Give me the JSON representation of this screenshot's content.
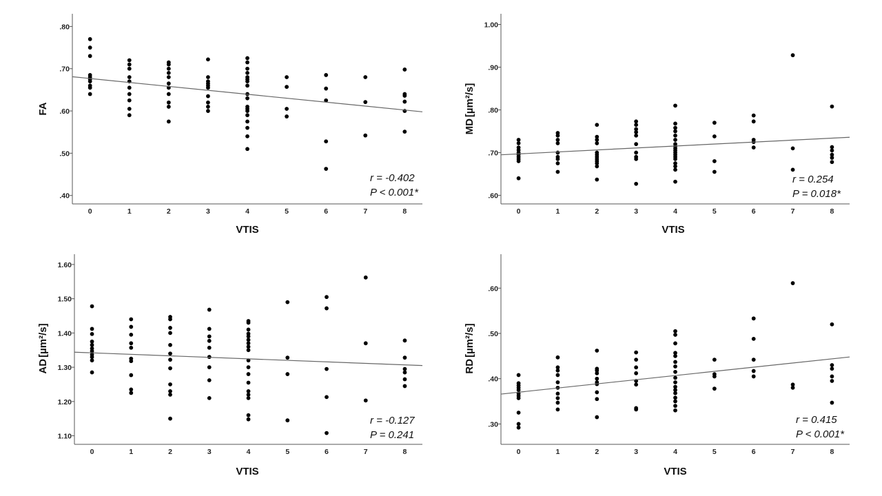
{
  "chart_data": [
    {
      "id": "fa",
      "type": "scatter",
      "xlabel": "VTIS",
      "ylabel": "FA",
      "ylabel_unit": "",
      "xticks": [
        0,
        1,
        2,
        3,
        4,
        5,
        6,
        7,
        8
      ],
      "xtick_labels": [
        "0",
        "1",
        "2",
        "3",
        "4",
        "5",
        "6",
        "7",
        "8"
      ],
      "xlim": [
        -0.45,
        8.45
      ],
      "yticks": [
        0.4,
        0.5,
        0.6,
        0.7,
        0.8
      ],
      "ytick_labels": [
        ".40",
        ".50",
        ".60",
        ".70",
        ".80"
      ],
      "ylim": [
        0.38,
        0.83
      ],
      "points": {
        "0": [
          0.77,
          0.75,
          0.73,
          0.685,
          0.68,
          0.675,
          0.67,
          0.66,
          0.655,
          0.64
        ],
        "1": [
          0.72,
          0.71,
          0.7,
          0.68,
          0.67,
          0.655,
          0.64,
          0.625,
          0.605,
          0.59
        ],
        "2": [
          0.715,
          0.71,
          0.7,
          0.69,
          0.68,
          0.665,
          0.655,
          0.64,
          0.62,
          0.61,
          0.575
        ],
        "3": [
          0.722,
          0.68,
          0.67,
          0.665,
          0.66,
          0.655,
          0.635,
          0.62,
          0.61,
          0.6
        ],
        "4": [
          0.725,
          0.715,
          0.7,
          0.69,
          0.68,
          0.675,
          0.67,
          0.66,
          0.64,
          0.63,
          0.61,
          0.605,
          0.6,
          0.59,
          0.575,
          0.56,
          0.54,
          0.51
        ],
        "5": [
          0.68,
          0.657,
          0.605,
          0.587
        ],
        "6": [
          0.685,
          0.653,
          0.625,
          0.528,
          0.463
        ],
        "7": [
          0.68,
          0.621,
          0.542
        ],
        "8": [
          0.698,
          0.64,
          0.636,
          0.622,
          0.6,
          0.551
        ]
      },
      "fit": {
        "x": [
          -0.45,
          8.45
        ],
        "y": [
          0.681,
          0.598
        ]
      },
      "stats": {
        "r": "r = -0.402",
        "p": "P < 0.001*"
      }
    },
    {
      "id": "md",
      "type": "scatter",
      "xlabel": "VTIS",
      "ylabel": "MD",
      "ylabel_unit": "[µm²/s]",
      "xticks": [
        0,
        1,
        2,
        3,
        4,
        5,
        6,
        7,
        8
      ],
      "xtick_labels": [
        "0",
        "1",
        "2",
        "3",
        "4",
        "5",
        "6",
        "7",
        "8"
      ],
      "xlim": [
        -0.45,
        8.45
      ],
      "yticks": [
        0.6,
        0.7,
        0.8,
        0.9,
        1.0
      ],
      "ytick_labels": [
        ".60",
        ".70",
        ".80",
        ".90",
        "1.00"
      ],
      "ylim": [
        0.58,
        1.025
      ],
      "points": {
        "0": [
          0.73,
          0.722,
          0.712,
          0.706,
          0.7,
          0.695,
          0.69,
          0.685,
          0.68,
          0.64
        ],
        "1": [
          0.746,
          0.74,
          0.73,
          0.722,
          0.7,
          0.69,
          0.685,
          0.675,
          0.655
        ],
        "2": [
          0.765,
          0.737,
          0.73,
          0.722,
          0.7,
          0.695,
          0.69,
          0.685,
          0.68,
          0.675,
          0.668,
          0.637
        ],
        "3": [
          0.773,
          0.765,
          0.755,
          0.748,
          0.74,
          0.72,
          0.7,
          0.69,
          0.685,
          0.627
        ],
        "4": [
          0.81,
          0.768,
          0.758,
          0.75,
          0.74,
          0.73,
          0.72,
          0.715,
          0.71,
          0.705,
          0.7,
          0.695,
          0.69,
          0.685,
          0.675,
          0.668,
          0.66,
          0.632
        ],
        "5": [
          0.77,
          0.738,
          0.68,
          0.655
        ],
        "6": [
          0.787,
          0.773,
          0.73,
          0.725,
          0.712
        ],
        "7": [
          0.928,
          0.71,
          0.66
        ],
        "8": [
          0.808,
          0.713,
          0.705,
          0.695,
          0.688,
          0.678
        ]
      },
      "fit": {
        "x": [
          -0.45,
          8.45
        ],
        "y": [
          0.695,
          0.736
        ]
      },
      "stats": {
        "r": "r = 0.254",
        "p": "P = 0.018*"
      }
    },
    {
      "id": "ad",
      "type": "scatter",
      "xlabel": "VTIS",
      "ylabel": "AD",
      "ylabel_unit": "[µm²/s]",
      "xticks": [
        0,
        1,
        2,
        3,
        4,
        5,
        6,
        7,
        8
      ],
      "xtick_labels": [
        "0",
        "1",
        "2",
        "3",
        "4",
        "5",
        "6",
        "7",
        "8"
      ],
      "xlim": [
        -0.45,
        8.45
      ],
      "yticks": [
        1.1,
        1.2,
        1.3,
        1.4,
        1.5,
        1.6
      ],
      "ytick_labels": [
        "1.10",
        "1.20",
        "1.30",
        "1.40",
        "1.50",
        "1.60"
      ],
      "ylim": [
        1.075,
        1.63
      ],
      "points": {
        "0": [
          1.478,
          1.412,
          1.397,
          1.375,
          1.365,
          1.355,
          1.347,
          1.337,
          1.33,
          1.32,
          1.285
        ],
        "1": [
          1.44,
          1.418,
          1.395,
          1.37,
          1.357,
          1.325,
          1.318,
          1.277,
          1.235,
          1.225
        ],
        "2": [
          1.447,
          1.44,
          1.415,
          1.4,
          1.365,
          1.34,
          1.322,
          1.297,
          1.25,
          1.23,
          1.22,
          1.15
        ],
        "3": [
          1.468,
          1.412,
          1.39,
          1.377,
          1.357,
          1.33,
          1.3,
          1.262,
          1.21
        ],
        "4": [
          1.435,
          1.43,
          1.41,
          1.398,
          1.39,
          1.38,
          1.37,
          1.36,
          1.35,
          1.32,
          1.3,
          1.28,
          1.255,
          1.23,
          1.22,
          1.21,
          1.16,
          1.148
        ],
        "5": [
          1.49,
          1.328,
          1.28,
          1.145
        ],
        "6": [
          1.505,
          1.472,
          1.295,
          1.213,
          1.108
        ],
        "7": [
          1.562,
          1.37,
          1.203
        ],
        "8": [
          1.378,
          1.328,
          1.295,
          1.285,
          1.265,
          1.245
        ]
      },
      "fit": {
        "x": [
          -0.45,
          8.45
        ],
        "y": [
          1.344,
          1.305
        ]
      },
      "stats": {
        "r": "r = -0.127",
        "p": "P = 0.241"
      }
    },
    {
      "id": "rd",
      "type": "scatter",
      "xlabel": "VTIS",
      "ylabel": "RD",
      "ylabel_unit": "[µm²/s]",
      "xticks": [
        0,
        1,
        2,
        3,
        4,
        5,
        6,
        7,
        8
      ],
      "xtick_labels": [
        "0",
        "1",
        "2",
        "3",
        "4",
        "5",
        "6",
        "7",
        "8"
      ],
      "xlim": [
        -0.45,
        8.45
      ],
      "yticks": [
        0.3,
        0.4,
        0.5,
        0.6
      ],
      "ytick_labels": [
        ".30",
        ".40",
        ".50",
        ".60"
      ],
      "ylim": [
        0.255,
        0.675
      ],
      "points": {
        "0": [
          0.408,
          0.39,
          0.385,
          0.38,
          0.375,
          0.367,
          0.362,
          0.357,
          0.325,
          0.3,
          0.292
        ],
        "1": [
          0.447,
          0.425,
          0.418,
          0.408,
          0.392,
          0.38,
          0.367,
          0.357,
          0.347,
          0.332
        ],
        "2": [
          0.462,
          0.422,
          0.418,
          0.412,
          0.4,
          0.392,
          0.388,
          0.37,
          0.355,
          0.315
        ],
        "3": [
          0.458,
          0.442,
          0.425,
          0.412,
          0.395,
          0.387,
          0.335,
          0.332
        ],
        "4": [
          0.505,
          0.497,
          0.478,
          0.457,
          0.45,
          0.437,
          0.427,
          0.415,
          0.402,
          0.392,
          0.382,
          0.375,
          0.368,
          0.358,
          0.35,
          0.34,
          0.33
        ],
        "5": [
          0.442,
          0.41,
          0.405,
          0.378
        ],
        "6": [
          0.533,
          0.488,
          0.442,
          0.417,
          0.405
        ],
        "7": [
          0.611,
          0.387,
          0.38
        ],
        "8": [
          0.52,
          0.43,
          0.422,
          0.405,
          0.395,
          0.347
        ]
      },
      "fit": {
        "x": [
          -0.45,
          8.45
        ],
        "y": [
          0.366,
          0.448
        ]
      },
      "stats": {
        "r": "r = 0.415",
        "p": "P < 0.001*"
      }
    }
  ]
}
